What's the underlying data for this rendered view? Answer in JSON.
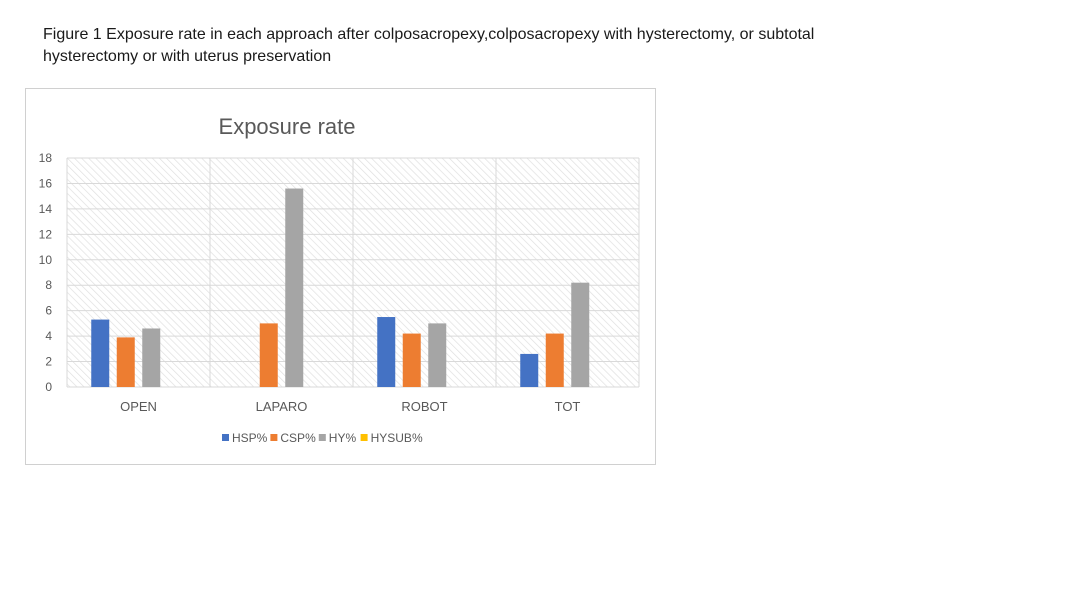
{
  "caption": "Figure 1 Exposure rate in each approach after colposacropexy,colposacropexy with hysterectomy, or subtotal hysterectomy or with uterus preservation",
  "chart_data": {
    "type": "bar",
    "title": "Exposure rate",
    "xlabel": "",
    "ylabel": "",
    "categories": [
      "OPEN",
      "LAPARO",
      "ROBOT",
      "TOT"
    ],
    "ylim": [
      0,
      18
    ],
    "yticks": [
      0,
      2,
      4,
      6,
      8,
      10,
      12,
      14,
      16,
      18
    ],
    "grid": true,
    "legend_position": "bottom",
    "series": [
      {
        "name": "HSP%",
        "color": "#4472c4",
        "values": [
          5.3,
          0,
          5.5,
          2.6
        ]
      },
      {
        "name": "CSP%",
        "color": "#ed7d31",
        "values": [
          3.9,
          5.0,
          4.2,
          4.2
        ]
      },
      {
        "name": "HY%",
        "color": "#a5a5a5",
        "values": [
          4.6,
          15.6,
          5.0,
          8.2
        ]
      },
      {
        "name": "HYSUB%",
        "color": "#ffc000",
        "values": [
          0,
          0,
          0,
          0
        ]
      }
    ]
  }
}
